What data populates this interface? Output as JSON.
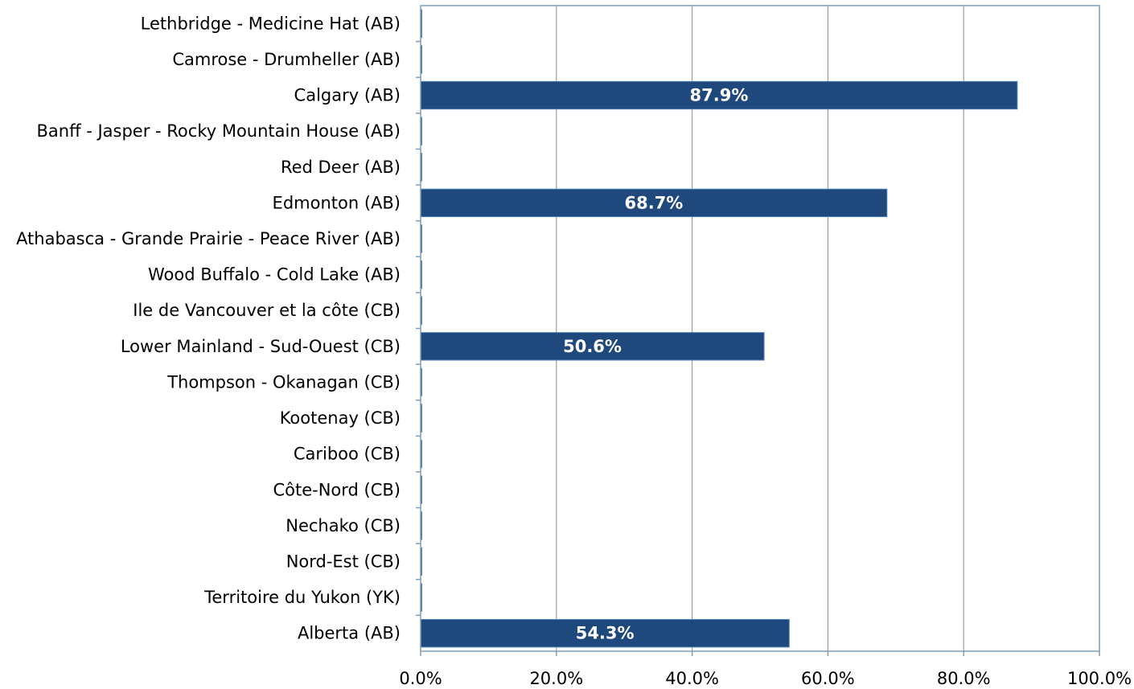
{
  "chart_data": {
    "type": "bar",
    "orientation": "horizontal",
    "categories": [
      "Lethbridge - Medicine Hat (AB)",
      "Camrose - Drumheller (AB)",
      "Calgary (AB)",
      "Banff - Jasper - Rocky Mountain House (AB)",
      "Red Deer (AB)",
      "Edmonton (AB)",
      "Athabasca - Grande Prairie - Peace River (AB)",
      "Wood Buffalo - Cold Lake (AB)",
      "Ile de Vancouver et la côte (CB)",
      "Lower Mainland - Sud-Ouest (CB)",
      "Thompson - Okanagan (CB)",
      "Kootenay (CB)",
      "Cariboo (CB)",
      "Côte-Nord (CB)",
      "Nechako (CB)",
      "Nord-Est (CB)",
      "Territoire du Yukon (YK)",
      "Alberta (AB)"
    ],
    "values": [
      0,
      0,
      87.9,
      0,
      0,
      68.7,
      0,
      0,
      0,
      50.6,
      0,
      0,
      0,
      0,
      0,
      0,
      0,
      54.3
    ],
    "data_labels": [
      "",
      "",
      "87.9%",
      "",
      "",
      "68.7%",
      "",
      "",
      "",
      "50.6%",
      "",
      "",
      "",
      "",
      "",
      "",
      "",
      "54.3%"
    ],
    "xlim": [
      0,
      100
    ],
    "xticks": [
      "0.0%",
      "20.0%",
      "40.0%",
      "60.0%",
      "80.0%",
      "100.0%"
    ],
    "grid": true,
    "bar_color": "#1F497D",
    "title": "",
    "xlabel": "",
    "ylabel": ""
  }
}
